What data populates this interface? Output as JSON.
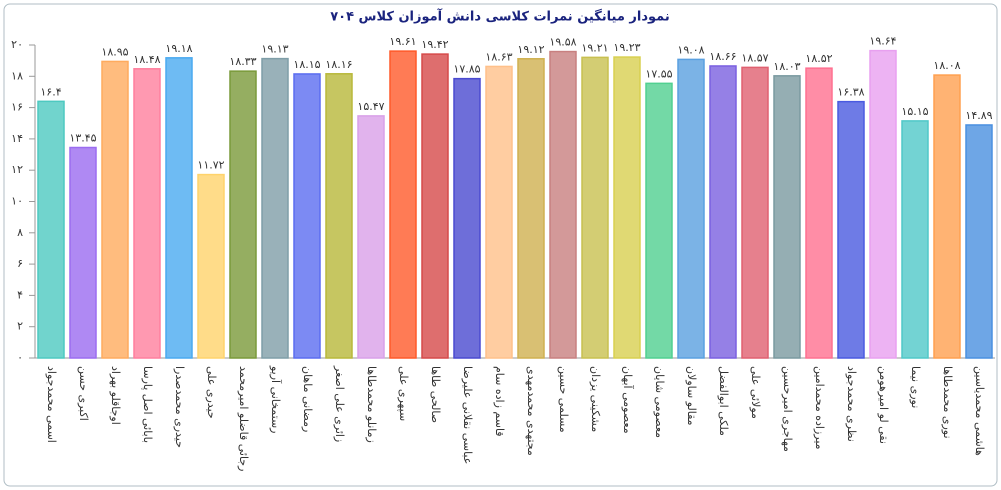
{
  "chart_data": {
    "type": "bar",
    "title": "نمودار میانگین نمرات کلاسی دانش آموزان کلاس ۷۰۴",
    "categories": [
      "اسمی محمدجواد",
      "اکبری حسن",
      "اوجاقلو بهراد",
      "بابائی اصل پارسا",
      "حیدری محمدصدرا",
      "حیدری علی",
      "رجائی قاضلو امیرمحمد",
      "رستمخانی آریو",
      "رمضانی ماهان",
      "زائری علی اصغر",
      "زمانلو محمدطاها",
      "سپهری علی",
      "صالحی طاها",
      "عباسی نقلانی علیرضا",
      "قاسم زاده سام",
      "مجتهدی محمدمهدی",
      "مسلمی حسین",
      "مشکینی یزدان",
      "معصومی آبهان",
      "معصومی شایان",
      "مقالو ساولان",
      "ملکی ابوالفضل",
      "مولائی علی",
      "مهاجری امیرحسین",
      "میرزاده محمدامین",
      "نظری محمدجواد",
      "نقی لو امیرهومن",
      "نوری نیما",
      "نوری محمدطاها",
      "هاشمی محمدیاسین"
    ],
    "values": [
      16.4,
      13.45,
      18.95,
      18.48,
      19.18,
      11.72,
      18.33,
      19.13,
      18.15,
      18.16,
      15.47,
      19.61,
      19.42,
      17.85,
      18.63,
      19.12,
      19.58,
      19.21,
      19.23,
      17.55,
      19.08,
      18.66,
      18.57,
      18.03,
      18.52,
      16.38,
      19.64,
      15.15,
      18.08,
      14.89
    ],
    "value_labels": [
      "۱۶.۴",
      "۱۳.۴۵",
      "۱۸.۹۵",
      "۱۸.۴۸",
      "۱۹.۱۸",
      "۱۱.۷۲",
      "۱۸.۳۳",
      "۱۹.۱۳",
      "۱۸.۱۵",
      "۱۸.۱۶",
      "۱۵.۴۷",
      "۱۹.۶۱",
      "۱۹.۴۲",
      "۱۷.۸۵",
      "۱۸.۶۳",
      "۱۹.۱۲",
      "۱۹.۵۸",
      "۱۹.۲۱",
      "۱۹.۲۳",
      "۱۷.۵۵",
      "۱۹.۰۸",
      "۱۸.۶۶",
      "۱۸.۵۷",
      "۱۸.۰۳",
      "۱۸.۵۲",
      "۱۶.۳۸",
      "۱۹.۶۴",
      "۱۵.۱۵",
      "۱۸.۰۸",
      "۱۴.۸۹"
    ],
    "colors": [
      "#4dc9c0",
      "#9b6cf0",
      "#ffab5e",
      "#ff7f9e",
      "#4aaaf0",
      "#ffd36b",
      "#7a9a3a",
      "#7f9ea8",
      "#5b6df0",
      "#b8b83a",
      "#d9a0e8",
      "#ff5a2a",
      "#d64a4a",
      "#4a4ad0",
      "#ffc08a",
      "#d0b050",
      "#c88080",
      "#c8c050",
      "#d8d050",
      "#50d090",
      "#5aa0e0",
      "#7a60e0",
      "#e06070",
      "#7a9aa0",
      "#ff7090",
      "#4a5ae0",
      "#e8a0f0",
      "#50c8c8",
      "#ffa050",
      "#4a90e0"
    ],
    "ylim": [
      0,
      20
    ],
    "yticks": [
      {
        "value": 0,
        "label": "۰"
      },
      {
        "value": 2,
        "label": "۲"
      },
      {
        "value": 4,
        "label": "۴"
      },
      {
        "value": 6,
        "label": "۶"
      },
      {
        "value": 8,
        "label": "۸"
      },
      {
        "value": 10,
        "label": "۱۰"
      },
      {
        "value": 12,
        "label": "۱۲"
      },
      {
        "value": 14,
        "label": "۱۴"
      },
      {
        "value": 16,
        "label": "۱۶"
      },
      {
        "value": 18,
        "label": "۱۸"
      },
      {
        "value": 20,
        "label": "۲۰"
      }
    ]
  }
}
